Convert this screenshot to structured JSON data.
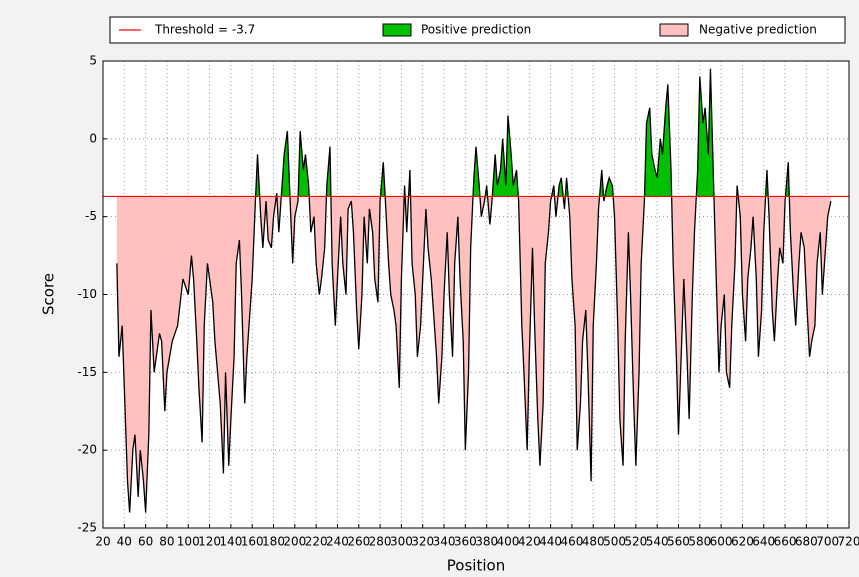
{
  "chart_data": {
    "type": "threshold-area",
    "xlabel": "Position",
    "ylabel": "Score",
    "xlim": [
      20,
      720
    ],
    "xticks": [
      20,
      40,
      60,
      80,
      100,
      120,
      140,
      160,
      180,
      200,
      220,
      240,
      260,
      280,
      300,
      320,
      340,
      360,
      380,
      400,
      420,
      440,
      460,
      480,
      500,
      520,
      540,
      560,
      580,
      600,
      620,
      640,
      660,
      680,
      700,
      720
    ],
    "ylim": [
      -25,
      5
    ],
    "yticks": [
      -25,
      -20,
      -15,
      -10,
      -5,
      0,
      5
    ],
    "grid": true,
    "threshold": {
      "value": -3.7,
      "label": "Threshold = -3.7",
      "color": "#ff0000"
    },
    "fills": [
      {
        "name": "Positive prediction",
        "color": "#00c000",
        "side": "above"
      },
      {
        "name": "Negative prediction",
        "color": "#ffc0c0",
        "side": "below"
      }
    ],
    "x": [
      33,
      35,
      38,
      40,
      43,
      45,
      48,
      50,
      53,
      55,
      58,
      60,
      63,
      65,
      68,
      70,
      73,
      75,
      78,
      80,
      85,
      90,
      95,
      100,
      103,
      105,
      108,
      110,
      113,
      115,
      118,
      120,
      123,
      125,
      130,
      133,
      135,
      138,
      140,
      143,
      145,
      148,
      150,
      153,
      155,
      160,
      163,
      165,
      168,
      170,
      173,
      175,
      178,
      180,
      183,
      185,
      188,
      190,
      193,
      195,
      198,
      200,
      203,
      205,
      208,
      210,
      213,
      215,
      218,
      220,
      223,
      225,
      228,
      230,
      233,
      235,
      238,
      240,
      243,
      245,
      248,
      250,
      253,
      255,
      258,
      260,
      263,
      265,
      268,
      270,
      273,
      275,
      278,
      280,
      283,
      285,
      288,
      290,
      293,
      295,
      298,
      300,
      303,
      305,
      308,
      310,
      313,
      315,
      318,
      320,
      323,
      325,
      328,
      330,
      333,
      335,
      338,
      340,
      343,
      345,
      348,
      350,
      353,
      355,
      358,
      360,
      363,
      365,
      368,
      370,
      373,
      375,
      378,
      380,
      383,
      385,
      388,
      390,
      393,
      395,
      398,
      400,
      403,
      405,
      408,
      410,
      413,
      415,
      418,
      420,
      423,
      425,
      428,
      430,
      433,
      435,
      438,
      440,
      443,
      445,
      448,
      450,
      453,
      455,
      458,
      460,
      463,
      465,
      468,
      470,
      473,
      475,
      478,
      480,
      483,
      485,
      488,
      490,
      493,
      495,
      498,
      500,
      503,
      505,
      508,
      510,
      513,
      515,
      518,
      520,
      523,
      525,
      528,
      530,
      533,
      535,
      538,
      540,
      543,
      545,
      548,
      550,
      553,
      555,
      558,
      560,
      563,
      565,
      568,
      570,
      573,
      575,
      578,
      580,
      583,
      585,
      588,
      590,
      593,
      595,
      598,
      600,
      603,
      605,
      608,
      610,
      613,
      615,
      618,
      620,
      623,
      625,
      628,
      630,
      633,
      635,
      638,
      640,
      643,
      645,
      648,
      650,
      653,
      655,
      658,
      660,
      663,
      665,
      668,
      670,
      673,
      675,
      678,
      680,
      683,
      685,
      688,
      690,
      693,
      695,
      698,
      700,
      703
    ],
    "series": [
      {
        "color": "#000000",
        "values": [
          -8,
          -14,
          -12,
          -16,
          -22,
          -24,
          -20,
          -19,
          -23,
          -20,
          -22,
          -24,
          -19,
          -11,
          -15,
          -14,
          -12.5,
          -13,
          -17.5,
          -15,
          -13,
          -12,
          -9,
          -10,
          -7.5,
          -9,
          -13,
          -16,
          -19.5,
          -12,
          -8,
          -9,
          -10.5,
          -13,
          -17,
          -21.5,
          -15,
          -21,
          -18,
          -14,
          -8,
          -6.5,
          -10,
          -17,
          -14,
          -9,
          -4,
          -1,
          -5,
          -7,
          -4,
          -6.5,
          -7,
          -5,
          -3.5,
          -6,
          -3,
          -1,
          0.5,
          -3,
          -8,
          -5,
          -4,
          0.5,
          -2,
          -1,
          -3,
          -6,
          -5,
          -8,
          -10,
          -9,
          -7,
          -3,
          -0.5,
          -8,
          -12,
          -9,
          -5,
          -8,
          -10,
          -4.5,
          -4,
          -6,
          -11,
          -13.5,
          -10,
          -5,
          -8,
          -4.5,
          -6,
          -9,
          -10.5,
          -4,
          -1.5,
          -4,
          -8,
          -10,
          -11,
          -12,
          -16,
          -9,
          -3,
          -6,
          -2,
          -8,
          -10,
          -14,
          -12,
          -9,
          -4.5,
          -7,
          -9,
          -11,
          -14,
          -17,
          -14,
          -10,
          -6,
          -10,
          -14,
          -8,
          -5,
          -9,
          -13,
          -20,
          -15,
          -7,
          -2.5,
          -0.5,
          -3,
          -5,
          -4,
          -3,
          -5.5,
          -4,
          -1,
          -3,
          -2,
          0,
          -3,
          1.5,
          -1,
          -3,
          -2,
          -4,
          -12,
          -15,
          -20,
          -14,
          -7,
          -12,
          -18,
          -21,
          -17,
          -8,
          -6,
          -4,
          -3,
          -5,
          -3,
          -2.5,
          -4.5,
          -2.5,
          -5,
          -9,
          -12,
          -20,
          -17,
          -13,
          -11,
          -15,
          -22,
          -12,
          -8,
          -4.5,
          -2,
          -4,
          -3,
          -2.5,
          -3,
          -5,
          -12,
          -18,
          -21,
          -13,
          -6,
          -10,
          -17,
          -21,
          -15,
          -8,
          -4,
          1,
          2,
          -1,
          -2,
          -2.5,
          0,
          -1,
          2,
          3.5,
          -2,
          -8,
          -14,
          -19,
          -13,
          -9,
          -14,
          -18,
          -10,
          -6,
          -2,
          4,
          1,
          2,
          -1,
          4.5,
          -3,
          -8,
          -15,
          -12,
          -10,
          -15,
          -16,
          -12,
          -8,
          -3,
          -5,
          -10,
          -13,
          -9,
          -7,
          -5,
          -9,
          -14,
          -11,
          -6,
          -2,
          -5,
          -11,
          -13,
          -9,
          -7,
          -8,
          -4,
          -1.5,
          -6,
          -10,
          -12,
          -8,
          -6,
          -7,
          -10,
          -14,
          -13,
          -12,
          -8,
          -6,
          -10,
          -7,
          -5,
          -4
        ]
      }
    ]
  }
}
